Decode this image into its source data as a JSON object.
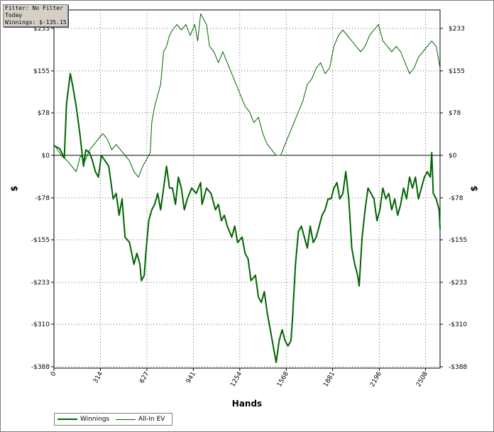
{
  "info_box": {
    "line1": "Filter: No Filter",
    "line2": "Today",
    "line3": "Winnings: $-135.15"
  },
  "chart_data": {
    "type": "line",
    "xlabel": "Hands",
    "ylabel": "$",
    "xlim": [
      0,
      2606
    ],
    "ylim": [
      -388,
      270
    ],
    "x_ticks": [
      0,
      314,
      627,
      941,
      1254,
      1568,
      1881,
      2196,
      2508
    ],
    "x_tick_labels": [
      "0",
      "314",
      "627",
      "941",
      "1254",
      "1568",
      "1881",
      "2196",
      "2508"
    ],
    "y_ticks": [
      233,
      155,
      78,
      0,
      -78,
      -155,
      -233,
      -310,
      -388
    ],
    "y_tick_labels": [
      "$233",
      "$155",
      "$78",
      "$0",
      "-$78",
      "-$155",
      "-$233",
      "-$310",
      "-$388"
    ],
    "grid": true,
    "legend_position": "bottom-left",
    "series": [
      {
        "name": "Winnings",
        "color": "#006400",
        "width": 2,
        "points": [
          [
            0,
            18
          ],
          [
            40,
            12
          ],
          [
            70,
            -5
          ],
          [
            85,
            95
          ],
          [
            110,
            150
          ],
          [
            125,
            130
          ],
          [
            150,
            90
          ],
          [
            175,
            40
          ],
          [
            200,
            -20
          ],
          [
            215,
            10
          ],
          [
            240,
            5
          ],
          [
            260,
            -10
          ],
          [
            280,
            -30
          ],
          [
            300,
            -40
          ],
          [
            320,
            0
          ],
          [
            345,
            -10
          ],
          [
            370,
            -20
          ],
          [
            380,
            -40
          ],
          [
            400,
            -80
          ],
          [
            420,
            -70
          ],
          [
            440,
            -110
          ],
          [
            460,
            -80
          ],
          [
            480,
            -150
          ],
          [
            510,
            -160
          ],
          [
            540,
            -200
          ],
          [
            560,
            -180
          ],
          [
            580,
            -200
          ],
          [
            590,
            -230
          ],
          [
            610,
            -220
          ],
          [
            620,
            -180
          ],
          [
            640,
            -120
          ],
          [
            660,
            -100
          ],
          [
            680,
            -90
          ],
          [
            700,
            -70
          ],
          [
            720,
            -100
          ],
          [
            740,
            -60
          ],
          [
            760,
            -20
          ],
          [
            780,
            -60
          ],
          [
            800,
            -60
          ],
          [
            820,
            -90
          ],
          [
            840,
            -40
          ],
          [
            860,
            -60
          ],
          [
            880,
            -100
          ],
          [
            900,
            -80
          ],
          [
            930,
            -60
          ],
          [
            960,
            -70
          ],
          [
            990,
            -50
          ],
          [
            1000,
            -90
          ],
          [
            1030,
            -60
          ],
          [
            1060,
            -70
          ],
          [
            1090,
            -100
          ],
          [
            1110,
            -90
          ],
          [
            1130,
            -120
          ],
          [
            1150,
            -110
          ],
          [
            1170,
            -130
          ],
          [
            1200,
            -150
          ],
          [
            1220,
            -130
          ],
          [
            1240,
            -160
          ],
          [
            1270,
            -150
          ],
          [
            1290,
            -180
          ],
          [
            1310,
            -190
          ],
          [
            1330,
            -230
          ],
          [
            1360,
            -220
          ],
          [
            1380,
            -260
          ],
          [
            1400,
            -270
          ],
          [
            1420,
            -250
          ],
          [
            1440,
            -290
          ],
          [
            1460,
            -320
          ],
          [
            1480,
            -350
          ],
          [
            1500,
            -380
          ],
          [
            1520,
            -340
          ],
          [
            1540,
            -320
          ],
          [
            1560,
            -340
          ],
          [
            1580,
            -350
          ],
          [
            1600,
            -340
          ],
          [
            1610,
            -300
          ],
          [
            1630,
            -200
          ],
          [
            1650,
            -140
          ],
          [
            1670,
            -130
          ],
          [
            1690,
            -150
          ],
          [
            1710,
            -170
          ],
          [
            1730,
            -130
          ],
          [
            1750,
            -160
          ],
          [
            1770,
            -150
          ],
          [
            1790,
            -130
          ],
          [
            1810,
            -110
          ],
          [
            1830,
            -100
          ],
          [
            1850,
            -80
          ],
          [
            1870,
            -80
          ],
          [
            1890,
            -60
          ],
          [
            1910,
            -50
          ],
          [
            1930,
            -80
          ],
          [
            1950,
            -70
          ],
          [
            1970,
            -30
          ],
          [
            1990,
            -80
          ],
          [
            2010,
            -170
          ],
          [
            2030,
            -200
          ],
          [
            2050,
            -220
          ],
          [
            2060,
            -240
          ],
          [
            2080,
            -150
          ],
          [
            2100,
            -100
          ],
          [
            2120,
            -60
          ],
          [
            2140,
            -70
          ],
          [
            2160,
            -80
          ],
          [
            2180,
            -120
          ],
          [
            2200,
            -100
          ],
          [
            2220,
            -60
          ],
          [
            2240,
            -80
          ],
          [
            2260,
            -70
          ],
          [
            2280,
            -100
          ],
          [
            2300,
            -80
          ],
          [
            2320,
            -110
          ],
          [
            2340,
            -90
          ],
          [
            2360,
            -60
          ],
          [
            2380,
            -80
          ],
          [
            2400,
            -40
          ],
          [
            2420,
            -60
          ],
          [
            2440,
            -40
          ],
          [
            2460,
            -80
          ],
          [
            2480,
            -60
          ],
          [
            2500,
            -40
          ],
          [
            2520,
            -30
          ],
          [
            2540,
            -40
          ],
          [
            2550,
            5
          ],
          [
            2560,
            -70
          ],
          [
            2580,
            -80
          ],
          [
            2600,
            -100
          ],
          [
            2606,
            -135
          ]
        ]
      },
      {
        "name": "All-In EV",
        "color": "#006400",
        "width": 1,
        "points": [
          [
            0,
            20
          ],
          [
            50,
            0
          ],
          [
            90,
            -10
          ],
          [
            120,
            -20
          ],
          [
            150,
            -30
          ],
          [
            180,
            0
          ],
          [
            210,
            -10
          ],
          [
            240,
            10
          ],
          [
            270,
            20
          ],
          [
            300,
            30
          ],
          [
            330,
            40
          ],
          [
            360,
            30
          ],
          [
            390,
            10
          ],
          [
            420,
            20
          ],
          [
            450,
            10
          ],
          [
            480,
            0
          ],
          [
            510,
            -10
          ],
          [
            540,
            -30
          ],
          [
            570,
            -40
          ],
          [
            600,
            -20
          ],
          [
            620,
            -10
          ],
          [
            640,
            0
          ],
          [
            650,
            5
          ],
          [
            660,
            60
          ],
          [
            680,
            90
          ],
          [
            700,
            110
          ],
          [
            720,
            130
          ],
          [
            740,
            190
          ],
          [
            760,
            200
          ],
          [
            780,
            220
          ],
          [
            800,
            230
          ],
          [
            830,
            240
          ],
          [
            860,
            230
          ],
          [
            890,
            240
          ],
          [
            920,
            220
          ],
          [
            950,
            240
          ],
          [
            970,
            210
          ],
          [
            990,
            260
          ],
          [
            1010,
            250
          ],
          [
            1030,
            240
          ],
          [
            1050,
            200
          ],
          [
            1080,
            190
          ],
          [
            1110,
            170
          ],
          [
            1140,
            190
          ],
          [
            1170,
            170
          ],
          [
            1200,
            150
          ],
          [
            1230,
            130
          ],
          [
            1260,
            110
          ],
          [
            1290,
            90
          ],
          [
            1320,
            80
          ],
          [
            1350,
            60
          ],
          [
            1380,
            70
          ],
          [
            1410,
            40
          ],
          [
            1440,
            20
          ],
          [
            1470,
            10
          ],
          [
            1500,
            0
          ],
          [
            1530,
            0
          ],
          [
            1560,
            20
          ],
          [
            1590,
            40
          ],
          [
            1620,
            60
          ],
          [
            1650,
            80
          ],
          [
            1680,
            100
          ],
          [
            1710,
            130
          ],
          [
            1740,
            140
          ],
          [
            1770,
            160
          ],
          [
            1800,
            170
          ],
          [
            1830,
            150
          ],
          [
            1860,
            160
          ],
          [
            1890,
            200
          ],
          [
            1920,
            220
          ],
          [
            1950,
            230
          ],
          [
            1980,
            220
          ],
          [
            2010,
            210
          ],
          [
            2040,
            200
          ],
          [
            2070,
            190
          ],
          [
            2100,
            200
          ],
          [
            2130,
            220
          ],
          [
            2160,
            230
          ],
          [
            2190,
            240
          ],
          [
            2220,
            210
          ],
          [
            2250,
            200
          ],
          [
            2280,
            190
          ],
          [
            2310,
            200
          ],
          [
            2340,
            190
          ],
          [
            2370,
            170
          ],
          [
            2400,
            150
          ],
          [
            2430,
            160
          ],
          [
            2460,
            180
          ],
          [
            2490,
            190
          ],
          [
            2520,
            200
          ],
          [
            2550,
            210
          ],
          [
            2580,
            200
          ],
          [
            2606,
            160
          ]
        ]
      }
    ]
  }
}
